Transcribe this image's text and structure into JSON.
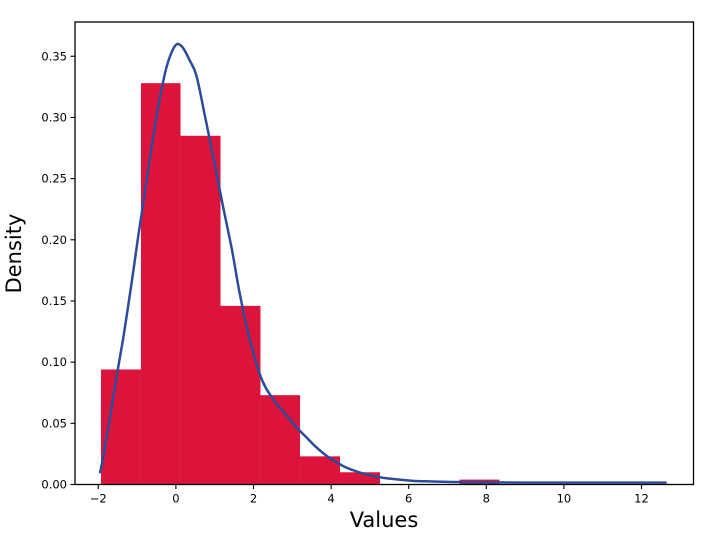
{
  "chart_data": {
    "type": "bar",
    "subtype": "histogram-with-density-curve",
    "title": "",
    "xlabel": "Values",
    "ylabel": "Density",
    "xlim": [
      -2.6,
      13.34
    ],
    "ylim": [
      0,
      0.378
    ],
    "grid": false,
    "legend": null,
    "x_ticks": [
      -2,
      0,
      2,
      4,
      6,
      8,
      10,
      12
    ],
    "x_tick_labels": [
      "−2",
      "0",
      "2",
      "4",
      "6",
      "8",
      "10",
      "12"
    ],
    "y_ticks": [
      0.0,
      0.05,
      0.1,
      0.15,
      0.2,
      0.25,
      0.3,
      0.35
    ],
    "y_tick_labels": [
      "0.00",
      "0.05",
      "0.10",
      "0.15",
      "0.20",
      "0.25",
      "0.30",
      "0.35"
    ],
    "histogram": {
      "bin_edges": [
        -1.93,
        -0.9,
        0.12,
        1.15,
        2.18,
        3.2,
        4.23,
        5.26,
        6.29,
        7.31,
        8.34
      ],
      "densities": [
        0.094,
        0.328,
        0.285,
        0.146,
        0.073,
        0.023,
        0.01,
        0.0,
        0.0,
        0.004
      ],
      "bar_color": "#dc143c"
    },
    "density_curve": {
      "name": "kde-fit-curve",
      "color": "#2b4c9b",
      "line_width": 2.5,
      "peak": {
        "x": 0.03,
        "y": 0.36
      },
      "x": [
        -1.95,
        -1.86,
        -1.74,
        -1.61,
        -1.48,
        -1.35,
        -1.22,
        -1.09,
        -0.97,
        -0.84,
        -0.71,
        -0.55,
        -0.4,
        -0.25,
        -0.1,
        0.03,
        0.18,
        0.35,
        0.53,
        0.75,
        1.0,
        1.21,
        1.45,
        1.64,
        1.9,
        2.2,
        2.5,
        2.84,
        3.1,
        3.35,
        3.6,
        3.86,
        4.1,
        4.38,
        4.72,
        5.0,
        5.23,
        5.6,
        6.1,
        6.6,
        7.2,
        8.0,
        9.0,
        10.0,
        11.0,
        12.0,
        12.62
      ],
      "y": [
        0.01,
        0.025,
        0.047,
        0.072,
        0.097,
        0.121,
        0.148,
        0.176,
        0.203,
        0.23,
        0.258,
        0.291,
        0.318,
        0.34,
        0.354,
        0.36,
        0.357,
        0.347,
        0.334,
        0.301,
        0.262,
        0.228,
        0.191,
        0.157,
        0.119,
        0.087,
        0.07,
        0.057,
        0.047,
        0.039,
        0.031,
        0.024,
        0.019,
        0.014,
        0.01,
        0.0075,
        0.006,
        0.0045,
        0.003,
        0.0025,
        0.002,
        0.0018,
        0.0015,
        0.0015,
        0.0015,
        0.0015,
        0.0015
      ]
    },
    "colors": {
      "background": "#ffffff",
      "spine": "#000000",
      "tick": "#000000",
      "text": "#000000"
    }
  }
}
